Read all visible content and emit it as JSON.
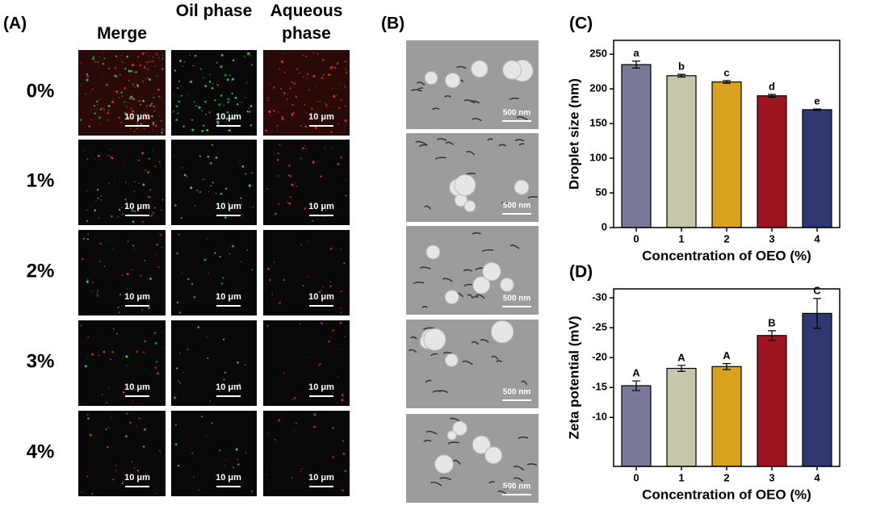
{
  "panel_a": {
    "label": "(A)",
    "columns": [
      "Merge",
      "Oil phase",
      "Aqueous phase"
    ],
    "rows": [
      "0%",
      "1%",
      "2%",
      "3%",
      "4%"
    ],
    "scale_bar": "10 μm"
  },
  "panel_b": {
    "label": "(B)",
    "scale_bar": "500 nm"
  },
  "chart_data": [
    {
      "type": "bar",
      "panel_label": "(C)",
      "categories": [
        "0",
        "1",
        "2",
        "3",
        "4"
      ],
      "values": [
        235,
        219,
        210,
        190,
        170
      ],
      "errors": [
        5,
        2,
        2,
        2,
        1
      ],
      "annotations": [
        "a",
        "b",
        "c",
        "d",
        "e"
      ],
      "colors": [
        "#7a7898",
        "#c5c6aa",
        "#d8a31e",
        "#9e1520",
        "#2d3870"
      ],
      "ylim": [
        0,
        270
      ],
      "yticks": [
        0,
        50,
        100,
        150,
        200,
        250
      ],
      "ylabel": "Droplet size (nm)",
      "xlabel": "Concentration of OEO (%)"
    },
    {
      "type": "bar",
      "panel_label": "(D)",
      "categories": [
        "0",
        "1",
        "2",
        "3",
        "4"
      ],
      "values": [
        -15.3,
        -18.2,
        -18.5,
        -23.7,
        -27.4
      ],
      "errors": [
        0.8,
        0.5,
        0.5,
        0.8,
        2.5
      ],
      "annotations": [
        "A",
        "A",
        "A",
        "B",
        "C"
      ],
      "colors": [
        "#7a7898",
        "#c5c6aa",
        "#d8a31e",
        "#9e1520",
        "#2d3870"
      ],
      "ylim": [
        -1.8,
        -31.5
      ],
      "yticks": [
        -10,
        -15,
        -20,
        -25,
        -30
      ],
      "ylabel": "Zeta potential (mV)",
      "xlabel": "Concentration of OEO (%)"
    }
  ]
}
